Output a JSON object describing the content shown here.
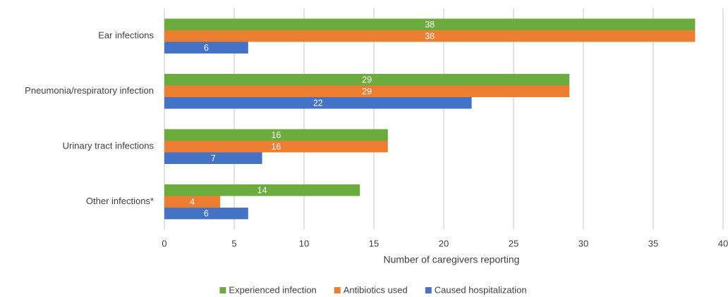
{
  "chart_data": {
    "type": "hbar",
    "categories": [
      "Ear infections",
      "Pneumonia/respiratory infection",
      "Urinary tract infections",
      "Other infections*"
    ],
    "series": [
      {
        "name": "Experienced infection",
        "color": "#6cab3e",
        "values": [
          38,
          29,
          16,
          14
        ]
      },
      {
        "name": "Antibiotics used",
        "color": "#ed7d31",
        "values": [
          38,
          29,
          16,
          4
        ]
      },
      {
        "name": "Caused hospitalization",
        "color": "#4472c4",
        "values": [
          6,
          22,
          7,
          6
        ]
      }
    ],
    "xlabel": "Number of caregivers reporting",
    "xlim": [
      0,
      40
    ],
    "xticks": [
      0,
      5,
      10,
      15,
      20,
      25,
      30,
      35,
      40
    ],
    "grid": true,
    "legend": "bottom"
  }
}
